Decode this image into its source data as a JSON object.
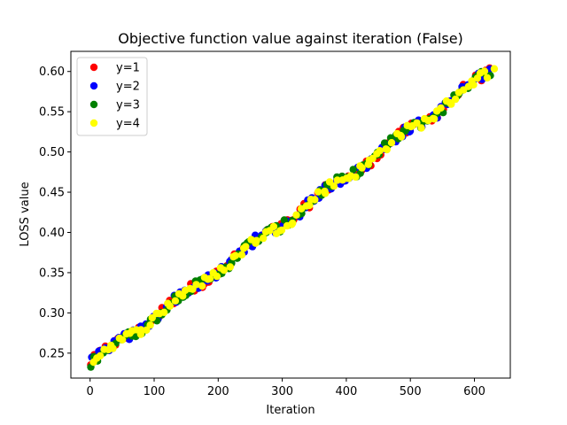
{
  "chart_data": {
    "type": "scatter",
    "title": "Objective function value against iteration (False)",
    "xlabel": "Iteration",
    "ylabel": "LOSS value",
    "xlim": [
      -30,
      656
    ],
    "ylim": [
      0.219,
      0.625
    ],
    "xticks": [
      0,
      100,
      200,
      300,
      400,
      500,
      600
    ],
    "yticks": [
      0.25,
      0.3,
      0.35,
      0.4,
      0.45,
      0.5,
      0.55,
      0.6
    ],
    "ytick_labels": [
      "0.25",
      "0.30",
      "0.35",
      "0.40",
      "0.45",
      "0.50",
      "0.55",
      "0.60"
    ],
    "grid": false,
    "legend_position": "top-left",
    "trend": {
      "x_start": 0,
      "y_start": 0.237,
      "x_end": 625,
      "y_end": 0.6,
      "noise": 0.006
    },
    "points_per_series": 112,
    "series": [
      {
        "name": "y=1",
        "color": "#ff0000"
      },
      {
        "name": "y=2",
        "color": "#0000ff"
      },
      {
        "name": "y=3",
        "color": "#008000"
      },
      {
        "name": "y=4",
        "color": "#ffff00"
      }
    ]
  }
}
